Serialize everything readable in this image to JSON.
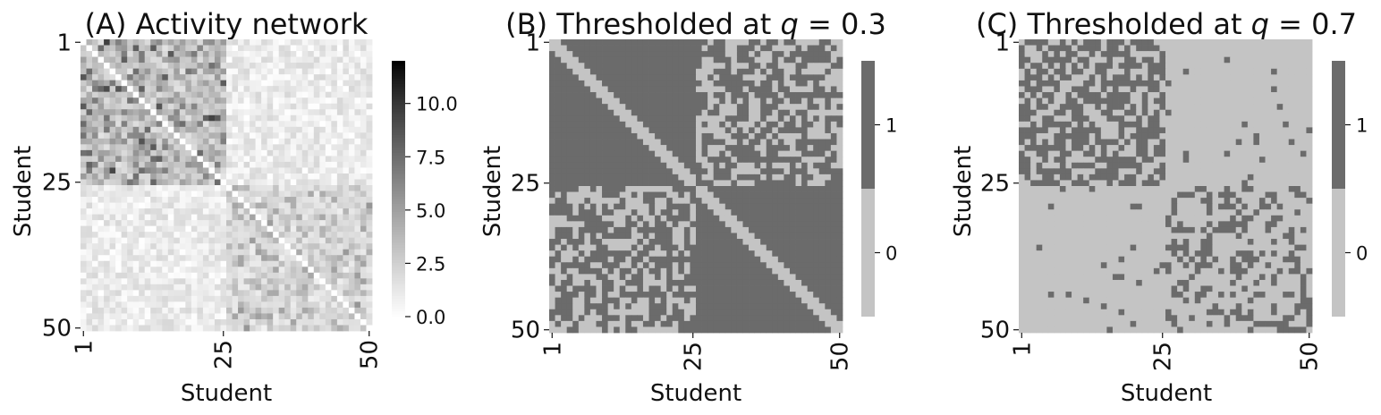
{
  "chart_data": [
    {
      "type": "heatmap",
      "title": "(A) Activity network",
      "xlabel": "Student",
      "ylabel": "Student",
      "n": 50,
      "block_boundary": 25,
      "tick_labels": [
        "1",
        "25",
        "50"
      ],
      "colormap": "Greys",
      "value_range": [
        0,
        12
      ],
      "colorbar_ticks": [
        "0.0",
        "2.5",
        "5.0",
        "7.5",
        "10.0"
      ],
      "colorbar_tick_values": [
        0,
        2.5,
        5,
        7.5,
        10
      ],
      "within_group_mean": 5.5,
      "between_group_mean": 1.0,
      "within_group_mean_group2": 3.5,
      "random_seed": 7
    },
    {
      "type": "heatmap",
      "title_prefix": "(B) Thresholded at ",
      "q_symbol": "q",
      "q_eq": " = 0.3",
      "xlabel": "Student",
      "ylabel": "Student",
      "n": 50,
      "tick_labels": [
        "1",
        "25",
        "50"
      ],
      "threshold_q": 0.3,
      "colorbar_ticks": [
        "1",
        "0"
      ],
      "colors": {
        "one": "#6b6b6b",
        "zero": "#c4c4c4"
      },
      "within_prob_one": 1.0,
      "between_prob_one": 0.55,
      "random_seed": 11
    },
    {
      "type": "heatmap",
      "title_prefix": "(C) Thresholded at ",
      "q_symbol": "q",
      "q_eq": " = 0.7",
      "xlabel": "Student",
      "ylabel": "Student",
      "n": 50,
      "tick_labels": [
        "1",
        "25",
        "50"
      ],
      "threshold_q": 0.7,
      "colorbar_ticks": [
        "1",
        "0"
      ],
      "colors": {
        "one": "#6b6b6b",
        "zero": "#c4c4c4"
      },
      "group1_prob_one": 0.6,
      "group2_prob_one": 0.35,
      "between_prob_one": 0.03,
      "random_seed": 23
    }
  ]
}
